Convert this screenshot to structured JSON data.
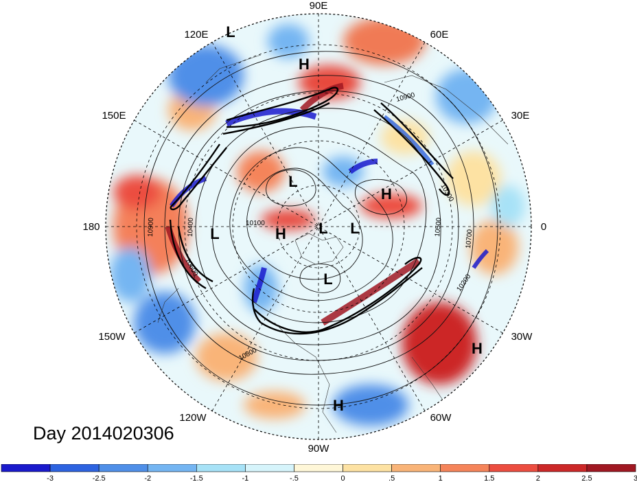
{
  "day_label": "Day 2014020306",
  "longitude_labels": [
    "90E",
    "60E",
    "30E",
    "0",
    "30W",
    "60W",
    "90W",
    "120W",
    "150W",
    "180",
    "150E",
    "120E"
  ],
  "contour_labels": [
    "10900",
    "10400",
    "10100",
    "10500",
    "10700",
    "10800",
    "10900",
    "10600",
    "10200",
    "10300"
  ],
  "pressure_centers": [
    "L",
    "H",
    "L",
    "H",
    "L",
    "H",
    "L",
    "L",
    "L",
    "L",
    "H",
    "H"
  ],
  "colorbar": {
    "tick_labels": [
      "-3",
      "-2.5",
      "-2",
      "-1.5",
      "-1",
      "-.5",
      "0",
      ".5",
      "1",
      "1.5",
      "2",
      "2.5",
      "3"
    ],
    "colors": [
      "#1a1acc",
      "#2d63e0",
      "#4f8fe8",
      "#74b5f2",
      "#a7e2f7",
      "#d6f4fb",
      "#fff7d8",
      "#fde2a3",
      "#f9b478",
      "#f5845a",
      "#ec4d40",
      "#cc2828",
      "#a01822"
    ]
  }
}
